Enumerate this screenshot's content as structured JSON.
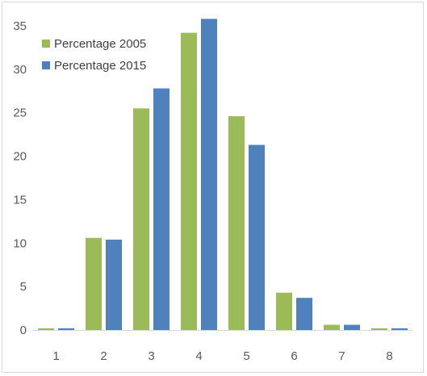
{
  "chart_data": {
    "type": "bar",
    "categories": [
      "1",
      "2",
      "3",
      "4",
      "5",
      "6",
      "7",
      "8"
    ],
    "series": [
      {
        "name": "Percentage 2005",
        "color": "#9bbb59",
        "values": [
          0.2,
          10.6,
          25.5,
          34.2,
          24.6,
          4.3,
          0.6,
          0.2
        ]
      },
      {
        "name": "Percentage 2015",
        "color": "#4f81bd",
        "values": [
          0.2,
          10.4,
          27.8,
          35.8,
          21.3,
          3.7,
          0.6,
          0.2
        ]
      }
    ],
    "y_ticks": [
      "0",
      "5",
      "10",
      "15",
      "20",
      "25",
      "30",
      "35"
    ],
    "ylim": [
      0,
      35
    ],
    "grid": false,
    "legend_position": "top-left"
  }
}
